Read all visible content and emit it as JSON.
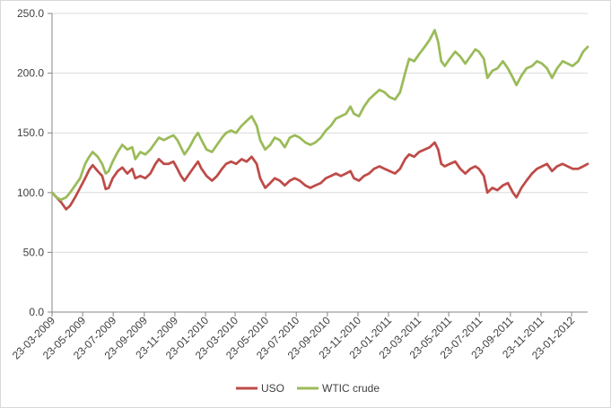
{
  "chart_data": {
    "type": "line",
    "title": "",
    "xlabel": "",
    "ylabel": "",
    "ylim": [
      0,
      250
    ],
    "yticks": [
      "0.0",
      "50.0",
      "100.0",
      "150.0",
      "200.0",
      "250.0"
    ],
    "grid": true,
    "legend_position": "bottom",
    "x_ticks": [
      "23-03-2009",
      "23-05-2009",
      "23-07-2009",
      "23-09-2009",
      "23-11-2009",
      "23-01-2010",
      "23-03-2010",
      "23-05-2010",
      "23-07-2010",
      "23-09-2010",
      "23-11-2010",
      "23-01-2011",
      "23-03-2011",
      "23-05-2011",
      "23-07-2011",
      "23-09-2011",
      "23-11-2011",
      "23-01-2012"
    ],
    "x_range": [
      "2009-03-23",
      "2012-02-24"
    ],
    "series": [
      {
        "name": "USO",
        "color": "#be4b48",
        "points": [
          [
            "2009-03-23",
            100
          ],
          [
            "2009-04-01",
            96
          ],
          [
            "2009-04-10",
            92
          ],
          [
            "2009-04-20",
            86
          ],
          [
            "2009-04-28",
            89
          ],
          [
            "2009-05-08",
            96
          ],
          [
            "2009-05-18",
            104
          ],
          [
            "2009-05-28",
            112
          ],
          [
            "2009-06-05",
            119
          ],
          [
            "2009-06-12",
            123
          ],
          [
            "2009-06-22",
            118
          ],
          [
            "2009-07-01",
            114
          ],
          [
            "2009-07-08",
            103
          ],
          [
            "2009-07-14",
            104
          ],
          [
            "2009-07-22",
            112
          ],
          [
            "2009-08-01",
            118
          ],
          [
            "2009-08-10",
            121
          ],
          [
            "2009-08-20",
            116
          ],
          [
            "2009-08-30",
            120
          ],
          [
            "2009-09-05",
            112
          ],
          [
            "2009-09-15",
            114
          ],
          [
            "2009-09-25",
            112
          ],
          [
            "2009-10-05",
            116
          ],
          [
            "2009-10-15",
            124
          ],
          [
            "2009-10-22",
            128
          ],
          [
            "2009-11-01",
            124
          ],
          [
            "2009-11-10",
            124
          ],
          [
            "2009-11-20",
            126
          ],
          [
            "2009-11-28",
            120
          ],
          [
            "2009-12-05",
            114
          ],
          [
            "2009-12-12",
            110
          ],
          [
            "2009-12-22",
            116
          ],
          [
            "2010-01-01",
            122
          ],
          [
            "2010-01-08",
            126
          ],
          [
            "2010-01-15",
            120
          ],
          [
            "2010-01-25",
            114
          ],
          [
            "2010-02-05",
            110
          ],
          [
            "2010-02-15",
            114
          ],
          [
            "2010-02-25",
            120
          ],
          [
            "2010-03-05",
            124
          ],
          [
            "2010-03-15",
            126
          ],
          [
            "2010-03-25",
            124
          ],
          [
            "2010-04-05",
            128
          ],
          [
            "2010-04-15",
            126
          ],
          [
            "2010-04-25",
            130
          ],
          [
            "2010-05-05",
            124
          ],
          [
            "2010-05-12",
            112
          ],
          [
            "2010-05-22",
            104
          ],
          [
            "2010-06-01",
            108
          ],
          [
            "2010-06-10",
            112
          ],
          [
            "2010-06-20",
            110
          ],
          [
            "2010-06-30",
            106
          ],
          [
            "2010-07-10",
            110
          ],
          [
            "2010-07-20",
            112
          ],
          [
            "2010-07-30",
            110
          ],
          [
            "2010-08-10",
            106
          ],
          [
            "2010-08-20",
            104
          ],
          [
            "2010-08-30",
            106
          ],
          [
            "2010-09-10",
            108
          ],
          [
            "2010-09-20",
            112
          ],
          [
            "2010-09-30",
            114
          ],
          [
            "2010-10-10",
            116
          ],
          [
            "2010-10-20",
            114
          ],
          [
            "2010-10-30",
            116
          ],
          [
            "2010-11-08",
            118
          ],
          [
            "2010-11-15",
            112
          ],
          [
            "2010-11-25",
            110
          ],
          [
            "2010-12-05",
            114
          ],
          [
            "2010-12-15",
            116
          ],
          [
            "2010-12-25",
            120
          ],
          [
            "2011-01-05",
            122
          ],
          [
            "2011-01-15",
            120
          ],
          [
            "2011-01-25",
            118
          ],
          [
            "2011-02-05",
            116
          ],
          [
            "2011-02-15",
            120
          ],
          [
            "2011-02-25",
            128
          ],
          [
            "2011-03-05",
            132
          ],
          [
            "2011-03-15",
            130
          ],
          [
            "2011-03-25",
            134
          ],
          [
            "2011-04-05",
            136
          ],
          [
            "2011-04-15",
            138
          ],
          [
            "2011-04-25",
            142
          ],
          [
            "2011-05-02",
            136
          ],
          [
            "2011-05-08",
            124
          ],
          [
            "2011-05-15",
            122
          ],
          [
            "2011-05-25",
            124
          ],
          [
            "2011-06-05",
            126
          ],
          [
            "2011-06-15",
            120
          ],
          [
            "2011-06-25",
            116
          ],
          [
            "2011-07-05",
            120
          ],
          [
            "2011-07-15",
            122
          ],
          [
            "2011-07-22",
            120
          ],
          [
            "2011-08-01",
            114
          ],
          [
            "2011-08-08",
            100
          ],
          [
            "2011-08-18",
            104
          ],
          [
            "2011-08-28",
            102
          ],
          [
            "2011-09-08",
            106
          ],
          [
            "2011-09-18",
            108
          ],
          [
            "2011-09-28",
            100
          ],
          [
            "2011-10-05",
            96
          ],
          [
            "2011-10-15",
            104
          ],
          [
            "2011-10-25",
            110
          ],
          [
            "2011-11-05",
            116
          ],
          [
            "2011-11-15",
            120
          ],
          [
            "2011-11-25",
            122
          ],
          [
            "2011-12-05",
            124
          ],
          [
            "2011-12-15",
            118
          ],
          [
            "2011-12-25",
            122
          ],
          [
            "2012-01-05",
            124
          ],
          [
            "2012-01-15",
            122
          ],
          [
            "2012-01-25",
            120
          ],
          [
            "2012-02-05",
            120
          ],
          [
            "2012-02-15",
            122
          ],
          [
            "2012-02-24",
            124
          ]
        ]
      },
      {
        "name": "WTIC crude",
        "color": "#9bbb59",
        "points": [
          [
            "2009-03-23",
            100
          ],
          [
            "2009-04-01",
            96
          ],
          [
            "2009-04-10",
            94
          ],
          [
            "2009-04-20",
            96
          ],
          [
            "2009-04-28",
            100
          ],
          [
            "2009-05-08",
            106
          ],
          [
            "2009-05-18",
            112
          ],
          [
            "2009-05-28",
            124
          ],
          [
            "2009-06-05",
            130
          ],
          [
            "2009-06-12",
            134
          ],
          [
            "2009-06-22",
            130
          ],
          [
            "2009-07-01",
            124
          ],
          [
            "2009-07-08",
            116
          ],
          [
            "2009-07-14",
            118
          ],
          [
            "2009-07-22",
            126
          ],
          [
            "2009-08-01",
            134
          ],
          [
            "2009-08-10",
            140
          ],
          [
            "2009-08-20",
            136
          ],
          [
            "2009-08-30",
            138
          ],
          [
            "2009-09-05",
            128
          ],
          [
            "2009-09-15",
            134
          ],
          [
            "2009-09-25",
            132
          ],
          [
            "2009-10-05",
            136
          ],
          [
            "2009-10-15",
            142
          ],
          [
            "2009-10-22",
            146
          ],
          [
            "2009-11-01",
            144
          ],
          [
            "2009-11-10",
            146
          ],
          [
            "2009-11-20",
            148
          ],
          [
            "2009-11-28",
            144
          ],
          [
            "2009-12-05",
            138
          ],
          [
            "2009-12-12",
            132
          ],
          [
            "2009-12-22",
            138
          ],
          [
            "2010-01-01",
            146
          ],
          [
            "2010-01-08",
            150
          ],
          [
            "2010-01-15",
            144
          ],
          [
            "2010-01-25",
            136
          ],
          [
            "2010-02-05",
            134
          ],
          [
            "2010-02-15",
            140
          ],
          [
            "2010-02-25",
            146
          ],
          [
            "2010-03-05",
            150
          ],
          [
            "2010-03-15",
            152
          ],
          [
            "2010-03-25",
            150
          ],
          [
            "2010-04-05",
            156
          ],
          [
            "2010-04-15",
            160
          ],
          [
            "2010-04-25",
            164
          ],
          [
            "2010-05-05",
            156
          ],
          [
            "2010-05-12",
            144
          ],
          [
            "2010-05-22",
            136
          ],
          [
            "2010-06-01",
            140
          ],
          [
            "2010-06-10",
            146
          ],
          [
            "2010-06-20",
            144
          ],
          [
            "2010-06-30",
            138
          ],
          [
            "2010-07-10",
            146
          ],
          [
            "2010-07-20",
            148
          ],
          [
            "2010-07-30",
            146
          ],
          [
            "2010-08-10",
            142
          ],
          [
            "2010-08-20",
            140
          ],
          [
            "2010-08-30",
            142
          ],
          [
            "2010-09-10",
            146
          ],
          [
            "2010-09-20",
            152
          ],
          [
            "2010-09-30",
            156
          ],
          [
            "2010-10-10",
            162
          ],
          [
            "2010-10-20",
            164
          ],
          [
            "2010-10-30",
            166
          ],
          [
            "2010-11-08",
            172
          ],
          [
            "2010-11-15",
            166
          ],
          [
            "2010-11-25",
            164
          ],
          [
            "2010-12-05",
            172
          ],
          [
            "2010-12-15",
            178
          ],
          [
            "2010-12-25",
            182
          ],
          [
            "2011-01-05",
            186
          ],
          [
            "2011-01-15",
            184
          ],
          [
            "2011-01-25",
            180
          ],
          [
            "2011-02-05",
            178
          ],
          [
            "2011-02-15",
            184
          ],
          [
            "2011-02-25",
            200
          ],
          [
            "2011-03-05",
            212
          ],
          [
            "2011-03-15",
            210
          ],
          [
            "2011-03-25",
            216
          ],
          [
            "2011-04-05",
            222
          ],
          [
            "2011-04-15",
            228
          ],
          [
            "2011-04-25",
            236
          ],
          [
            "2011-05-02",
            226
          ],
          [
            "2011-05-08",
            210
          ],
          [
            "2011-05-15",
            206
          ],
          [
            "2011-05-25",
            212
          ],
          [
            "2011-06-05",
            218
          ],
          [
            "2011-06-15",
            214
          ],
          [
            "2011-06-25",
            208
          ],
          [
            "2011-07-05",
            214
          ],
          [
            "2011-07-15",
            220
          ],
          [
            "2011-07-22",
            218
          ],
          [
            "2011-08-01",
            212
          ],
          [
            "2011-08-08",
            196
          ],
          [
            "2011-08-18",
            202
          ],
          [
            "2011-08-28",
            204
          ],
          [
            "2011-09-08",
            210
          ],
          [
            "2011-09-18",
            204
          ],
          [
            "2011-09-28",
            196
          ],
          [
            "2011-10-05",
            190
          ],
          [
            "2011-10-15",
            198
          ],
          [
            "2011-10-25",
            204
          ],
          [
            "2011-11-05",
            206
          ],
          [
            "2011-11-15",
            210
          ],
          [
            "2011-11-25",
            208
          ],
          [
            "2011-12-05",
            204
          ],
          [
            "2011-12-15",
            196
          ],
          [
            "2011-12-25",
            204
          ],
          [
            "2012-01-05",
            210
          ],
          [
            "2012-01-15",
            208
          ],
          [
            "2012-01-25",
            206
          ],
          [
            "2012-02-05",
            210
          ],
          [
            "2012-02-15",
            218
          ],
          [
            "2012-02-24",
            222
          ]
        ]
      }
    ]
  }
}
